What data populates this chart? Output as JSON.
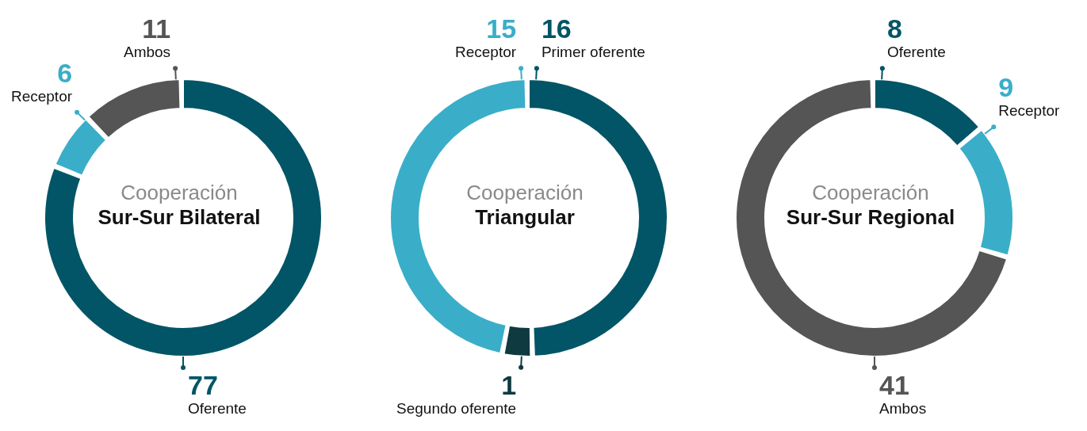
{
  "chart_data": [
    {
      "type": "donut",
      "title": "Cooperación",
      "subtitle": "Sur-Sur Bilateral",
      "categories": [
        "Oferente",
        "Receptor",
        "Ambos"
      ],
      "values": [
        77,
        6,
        11
      ],
      "colors": [
        "#015566",
        "#3aaec8",
        "#555555"
      ],
      "data_labels": true
    },
    {
      "type": "donut",
      "title": "Cooperación",
      "subtitle": "Triangular",
      "categories": [
        "Primer oferente",
        "Segundo oferente",
        "Receptor"
      ],
      "values": [
        16,
        1,
        15
      ],
      "colors": [
        "#015566",
        "#0e3a40",
        "#3aaec8"
      ],
      "data_labels": true
    },
    {
      "type": "donut",
      "title": "Cooperación",
      "subtitle": "Sur-Sur Regional",
      "categories": [
        "Oferente",
        "Receptor",
        "Ambos"
      ],
      "values": [
        8,
        9,
        41
      ],
      "colors": [
        "#015566",
        "#3aaec8",
        "#555555"
      ],
      "data_labels": true
    }
  ]
}
